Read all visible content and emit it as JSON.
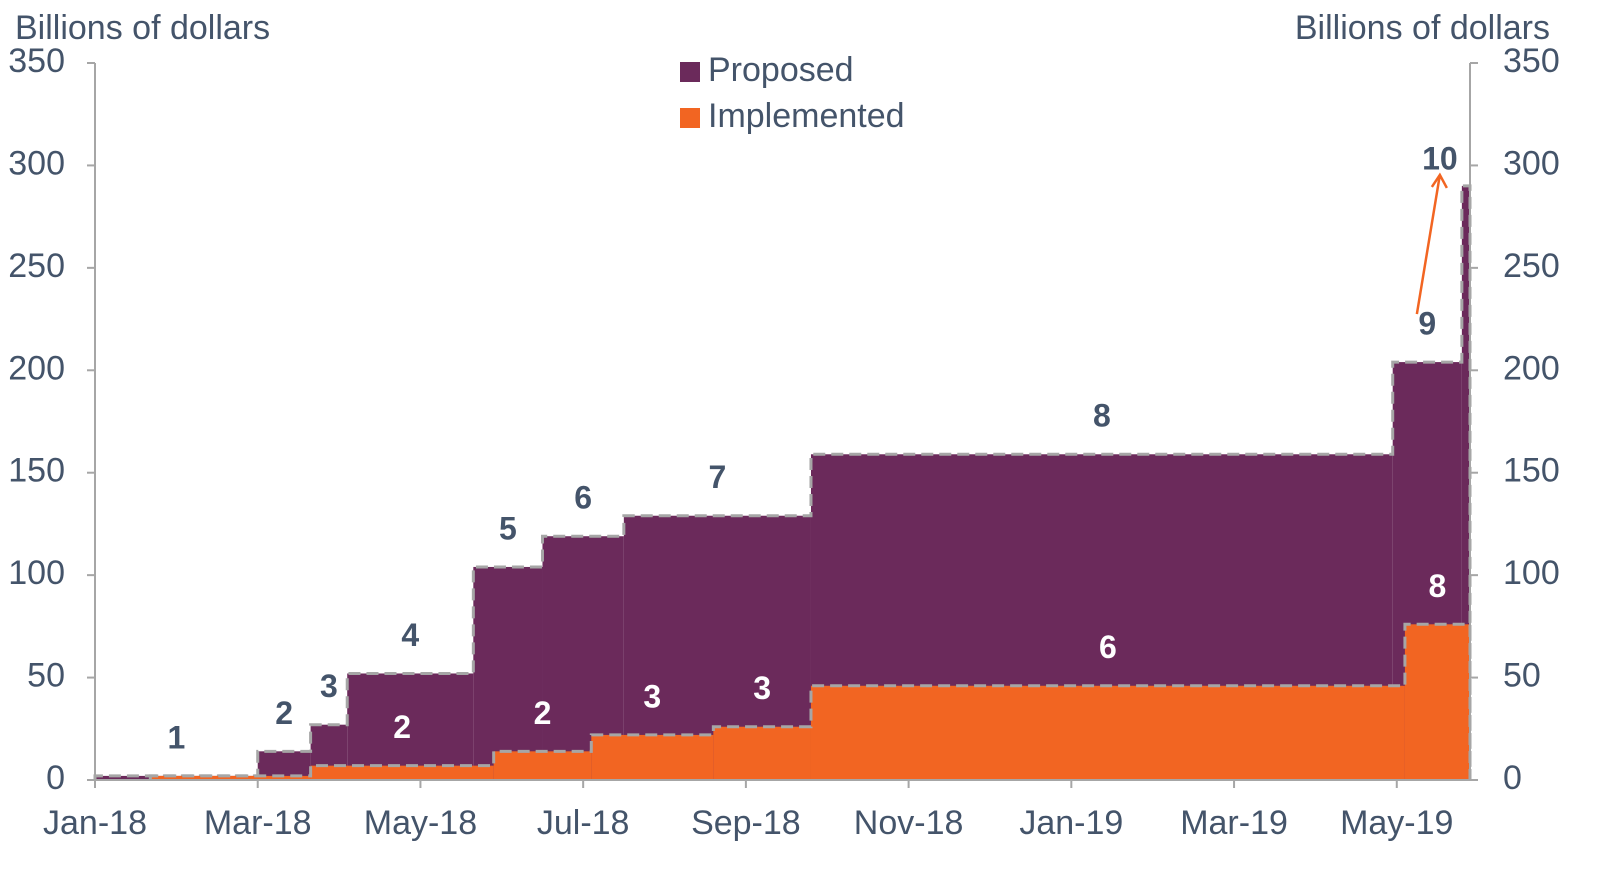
{
  "chart_data": {
    "type": "step-area",
    "y_label": "Billions of dollars",
    "y2_label": "Billions of dollars",
    "xlim": [
      0,
      16.9
    ],
    "xticks": [
      {
        "value": 0,
        "label": "Jan-18"
      },
      {
        "value": 2,
        "label": "Mar-18"
      },
      {
        "value": 4,
        "label": "May-18"
      },
      {
        "value": 6,
        "label": "Jul-18"
      },
      {
        "value": 8,
        "label": "Sep-18"
      },
      {
        "value": 10,
        "label": "Nov-18"
      },
      {
        "value": 12,
        "label": "Jan-19"
      },
      {
        "value": 14,
        "label": "Mar-19"
      },
      {
        "value": 16,
        "label": "May-19"
      }
    ],
    "ylim": [
      0,
      350
    ],
    "yticks": [
      0,
      50,
      100,
      150,
      200,
      250,
      300,
      350
    ],
    "y2lim": [
      0,
      350
    ],
    "y2ticks": [
      0,
      50,
      100,
      150,
      200,
      250,
      300,
      350
    ],
    "legend": "top",
    "series": [
      {
        "name": "Proposed",
        "color": "#6b2a5b",
        "label_color": "#44546a",
        "x": [
          0,
          2,
          2.65,
          3.1,
          4.65,
          5.5,
          6.5,
          8.8,
          15.95,
          16.8
        ],
        "values": [
          2,
          14,
          27,
          52,
          104,
          119,
          129,
          159,
          204,
          290
        ],
        "step_labels": [
          "1",
          "2",
          "3",
          "4",
          "5",
          "6",
          "7",
          "8",
          "9",
          "10"
        ]
      },
      {
        "name": "Implemented",
        "color": "#f26522",
        "label_color": "#ffffff",
        "x": [
          0.68,
          2.65,
          4.9,
          6.1,
          7.6,
          8.8,
          16.1
        ],
        "values": [
          2,
          7,
          14,
          22,
          26,
          46,
          76
        ],
        "step_labels": [
          null,
          "2",
          "2",
          "3",
          "3",
          "6",
          "8"
        ]
      }
    ]
  }
}
